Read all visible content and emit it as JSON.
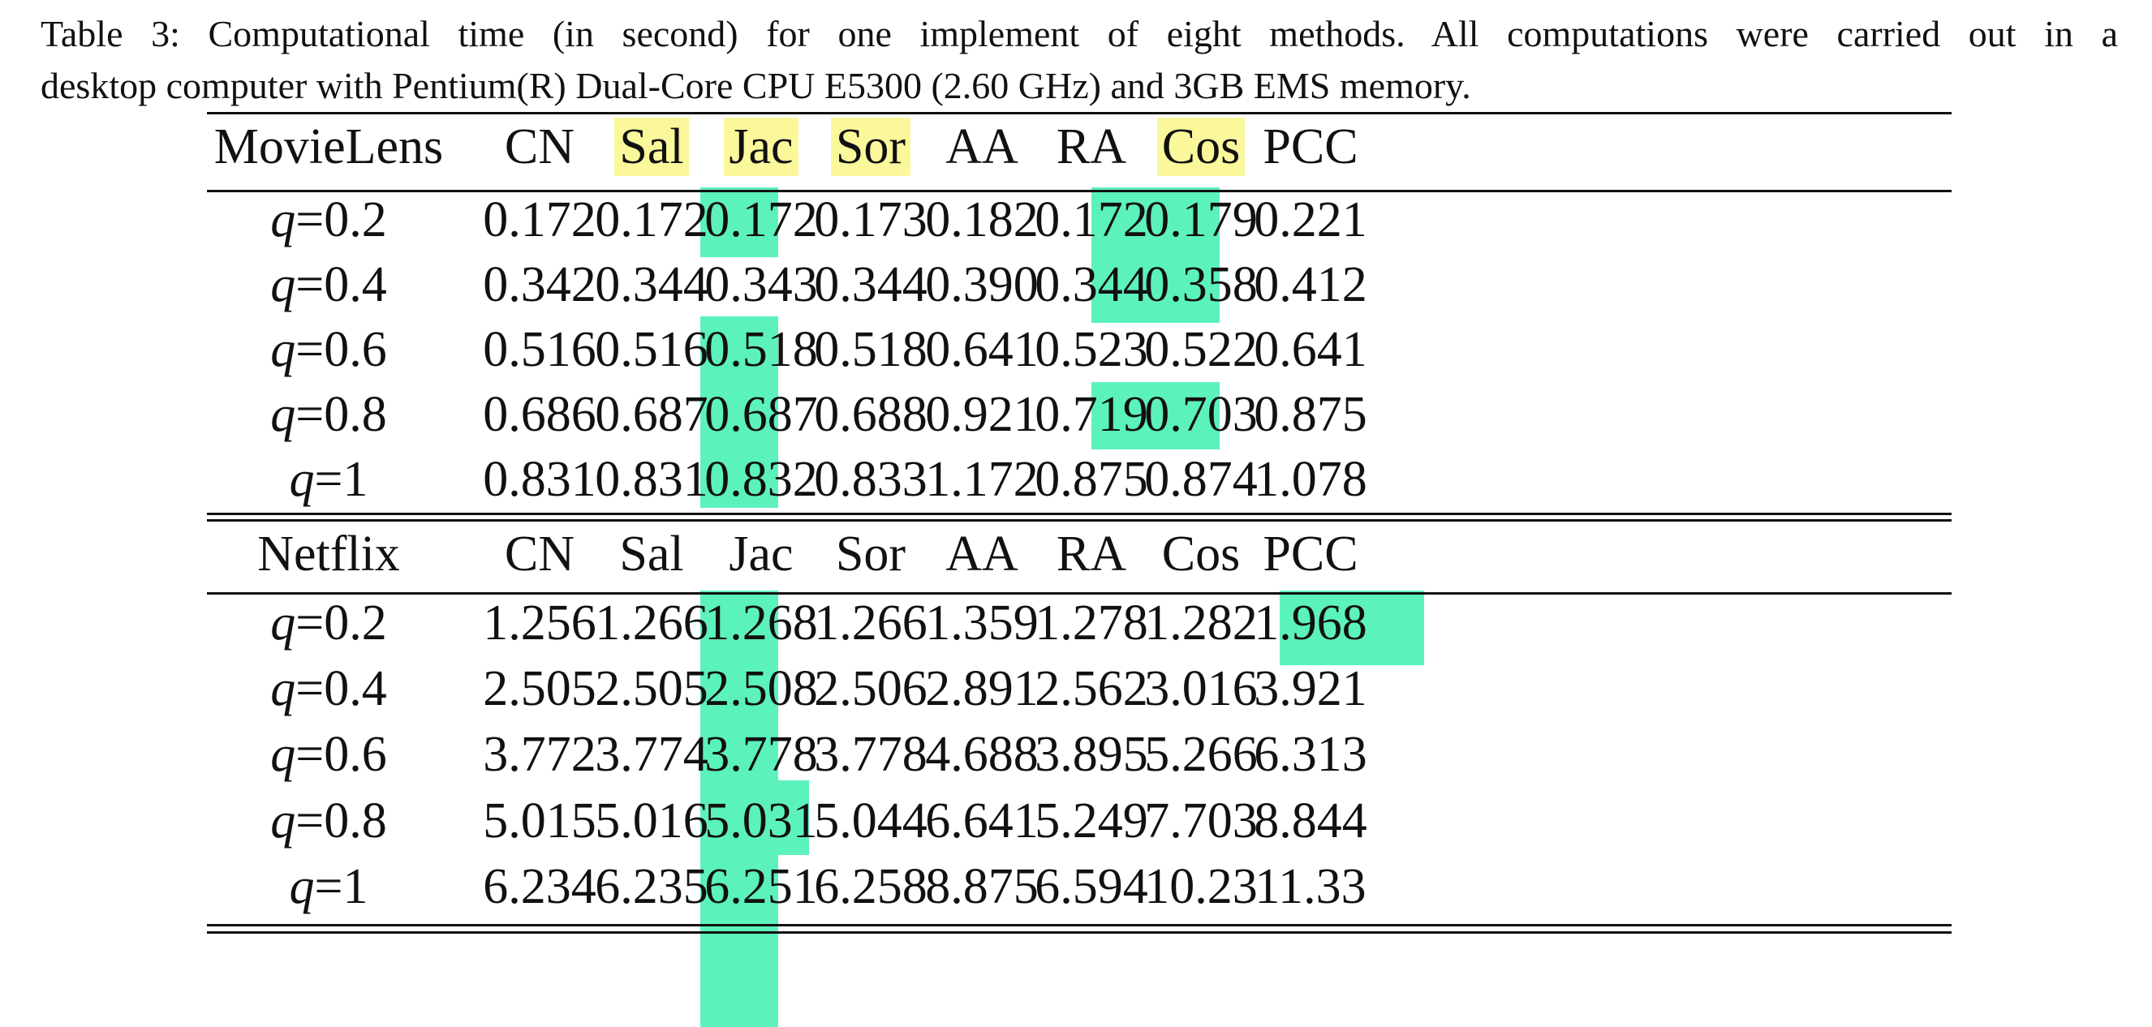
{
  "caption": {
    "line1": "Table 3: Computational time (in second) for one implement of eight methods. All computations were carried out in a",
    "line2": "desktop computer with Pentium(R) Dual-Core CPU E5300 (2.60 GHz) and 3GB EMS memory."
  },
  "colors": {
    "header_highlight": "#fbf89c",
    "cell_highlight": "#5cf2bb"
  },
  "movielens": {
    "headers": [
      "MovieLens",
      "CN",
      "Sal",
      "Jac",
      "Sor",
      "AA",
      "RA",
      "Cos",
      "PCC"
    ],
    "highlighted_headers": [
      "Sal",
      "Jac",
      "Sor",
      "Cos"
    ],
    "rows": [
      {
        "q": "0.2",
        "values": [
          "0.172",
          "0.172",
          "0.172",
          "0.173",
          "0.182",
          "0.172",
          "0.179",
          "0.221"
        ]
      },
      {
        "q": "0.4",
        "values": [
          "0.342",
          "0.344",
          "0.343",
          "0.344",
          "0.390",
          "0.344",
          "0.358",
          "0.412"
        ]
      },
      {
        "q": "0.6",
        "values": [
          "0.516",
          "0.516",
          "0.518",
          "0.518",
          "0.641",
          "0.523",
          "0.522",
          "0.641"
        ]
      },
      {
        "q": "0.8",
        "values": [
          "0.686",
          "0.687",
          "0.687",
          "0.688",
          "0.921",
          "0.719",
          "0.703",
          "0.875"
        ]
      },
      {
        "q": "1",
        "values": [
          "0.831",
          "0.831",
          "0.832",
          "0.833",
          "1.172",
          "0.875",
          "0.874",
          "1.078"
        ]
      }
    ]
  },
  "netflix": {
    "headers": [
      "Netflix",
      "CN",
      "Sal",
      "Jac",
      "Sor",
      "AA",
      "RA",
      "Cos",
      "PCC"
    ],
    "rows": [
      {
        "q": "0.2",
        "values": [
          "1.256",
          "1.266",
          "1.268",
          "1.266",
          "1.359",
          "1.278",
          "1.282",
          "1.968"
        ]
      },
      {
        "q": "0.4",
        "values": [
          "2.505",
          "2.505",
          "2.508",
          "2.506",
          "2.891",
          "2.562",
          "3.016",
          "3.921"
        ]
      },
      {
        "q": "0.6",
        "values": [
          "3.772",
          "3.774",
          "3.778",
          "3.778",
          "4.688",
          "3.895",
          "5.266",
          "6.313"
        ]
      },
      {
        "q": "0.8",
        "values": [
          "5.015",
          "5.016",
          "5.031",
          "5.044",
          "6.641",
          "5.249",
          "7.703",
          "8.844"
        ]
      },
      {
        "q": "1",
        "values": [
          "6.234",
          "6.235",
          "6.251",
          "6.258",
          "8.875",
          "6.594",
          "10.23",
          "11.33"
        ]
      }
    ]
  },
  "q_label": "q",
  "eq_sign": "="
}
